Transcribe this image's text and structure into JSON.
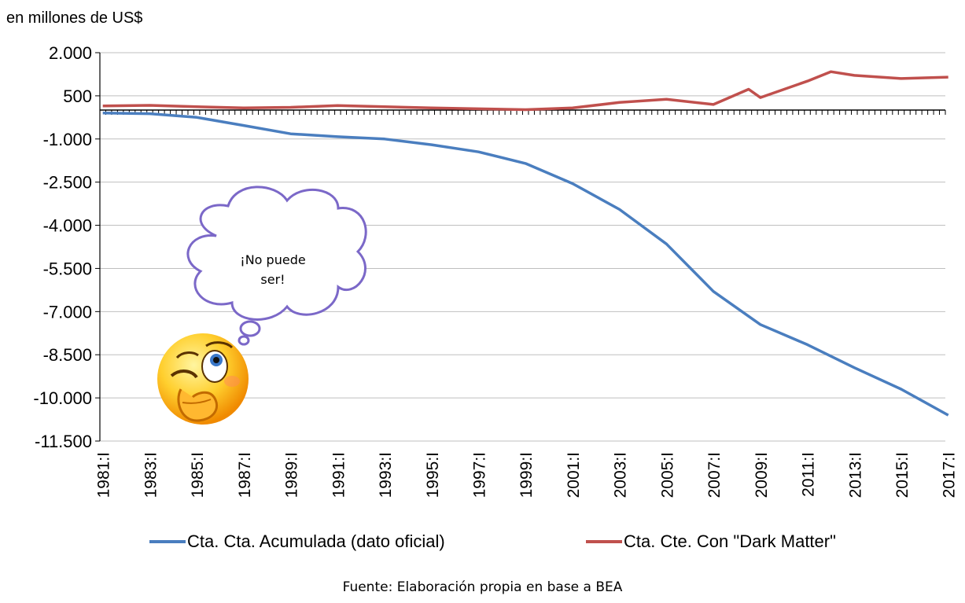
{
  "unit_label": "en millones de US$",
  "source": "Fuente: Elaboración propia en base a BEA",
  "annotation": {
    "text_line1": "¡No puede",
    "text_line2": "ser!",
    "emoji": "thinking-winking-face"
  },
  "colors": {
    "series1": "#4a7ebf",
    "series2": "#c0504d",
    "grid": "#bfbfbf",
    "axis": "#000000"
  },
  "chart_data": {
    "type": "line",
    "title": "",
    "ylabel": "en millones de US$",
    "ylim": [
      -11500,
      2000
    ],
    "yticks": [
      2000,
      500,
      -1000,
      -2500,
      -4000,
      -5500,
      -7000,
      -8500,
      -10000,
      -11500
    ],
    "ytick_labels": [
      "2.000",
      "500",
      "-1.000",
      "-2.500",
      "-4.000",
      "-5.500",
      "-7.000",
      "-8.500",
      "-10.000",
      "-11.500"
    ],
    "xtick_labels": [
      "1981:I",
      "1983:I",
      "1985:I",
      "1987:I",
      "1989:I",
      "1991:I",
      "1993:I",
      "1995:I",
      "1997:I",
      "1999:I",
      "2001:I",
      "2003:I",
      "2005:I",
      "2007:I",
      "2009:I",
      "2011:I",
      "2013:I",
      "2015:I",
      "2017:I"
    ],
    "legend_position": "bottom",
    "grid": true,
    "series": [
      {
        "name": "Cta. Cta. Acumulada (dato oficial)",
        "color": "#4a7ebf",
        "points": [
          [
            "1981:I",
            -100
          ],
          [
            "1983:I",
            -120
          ],
          [
            "1985:I",
            -250
          ],
          [
            "1987:I",
            -530
          ],
          [
            "1989:I",
            -820
          ],
          [
            "1991:I",
            -920
          ],
          [
            "1993:I",
            -1000
          ],
          [
            "1995:I",
            -1200
          ],
          [
            "1997:I",
            -1450
          ],
          [
            "1999:I",
            -1850
          ],
          [
            "2001:I",
            -2550
          ],
          [
            "2003:I",
            -3450
          ],
          [
            "2005:I",
            -4650
          ],
          [
            "2007:I",
            -6300
          ],
          [
            "2009:I",
            -7450
          ],
          [
            "2011:I",
            -8150
          ],
          [
            "2013:I",
            -8950
          ],
          [
            "2015:I",
            -9700
          ],
          [
            "2017:I",
            -10600
          ]
        ]
      },
      {
        "name": "Cta. Cte. Con \"Dark Matter\"",
        "color": "#c0504d",
        "points": [
          [
            "1981:I",
            150
          ],
          [
            "1983:I",
            170
          ],
          [
            "1985:I",
            120
          ],
          [
            "1987:I",
            80
          ],
          [
            "1989:I",
            100
          ],
          [
            "1991:I",
            160
          ],
          [
            "1993:I",
            120
          ],
          [
            "1995:I",
            80
          ],
          [
            "1997:I",
            50
          ],
          [
            "1999:I",
            20
          ],
          [
            "2001:I",
            80
          ],
          [
            "2003:I",
            270
          ],
          [
            "2005:I",
            380
          ],
          [
            "2007:I",
            200
          ],
          [
            "2008:III",
            730
          ],
          [
            "2009:I",
            440
          ],
          [
            "2011:I",
            1010
          ],
          [
            "2012:I",
            1340
          ],
          [
            "2013:I",
            1210
          ],
          [
            "2015:I",
            1100
          ],
          [
            "2017:I",
            1150
          ]
        ]
      }
    ]
  }
}
